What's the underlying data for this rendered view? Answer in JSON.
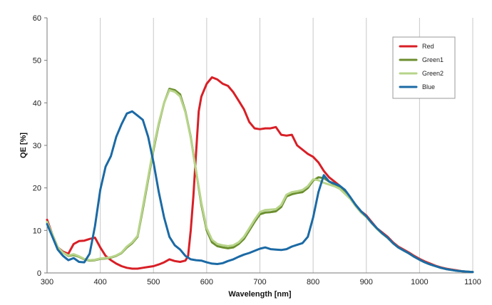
{
  "chart_data": {
    "type": "line",
    "title": "",
    "xlabel": "Wavelength [nm]",
    "ylabel": "QE [%]",
    "xlim": [
      300,
      1100
    ],
    "ylim": [
      0,
      60
    ],
    "x_ticks": [
      "300",
      "400",
      "500",
      "600",
      "700",
      "800",
      "900",
      "1000",
      "1100"
    ],
    "y_ticks": [
      "0",
      "10",
      "20",
      "30",
      "40",
      "50",
      "60"
    ],
    "grid": "vertical",
    "legend_position": "top-right",
    "series": [
      {
        "name": "Red",
        "color": "#d81f26",
        "points": [
          [
            300,
            12.5
          ],
          [
            310,
            9
          ],
          [
            320,
            6
          ],
          [
            330,
            5
          ],
          [
            340,
            4.5
          ],
          [
            350,
            6.8
          ],
          [
            360,
            7.5
          ],
          [
            370,
            7.6
          ],
          [
            380,
            8
          ],
          [
            390,
            8.3
          ],
          [
            400,
            6
          ],
          [
            410,
            4
          ],
          [
            420,
            3
          ],
          [
            430,
            2.2
          ],
          [
            440,
            1.6
          ],
          [
            450,
            1.2
          ],
          [
            460,
            1
          ],
          [
            470,
            1
          ],
          [
            480,
            1.2
          ],
          [
            490,
            1.4
          ],
          [
            500,
            1.6
          ],
          [
            510,
            2
          ],
          [
            520,
            2.5
          ],
          [
            530,
            3.2
          ],
          [
            540,
            2.8
          ],
          [
            550,
            2.6
          ],
          [
            560,
            2.9
          ],
          [
            565,
            4
          ],
          [
            570,
            10
          ],
          [
            575,
            18
          ],
          [
            580,
            28
          ],
          [
            585,
            38
          ],
          [
            590,
            41.5
          ],
          [
            600,
            44.5
          ],
          [
            610,
            46
          ],
          [
            620,
            45.5
          ],
          [
            630,
            44.5
          ],
          [
            640,
            44
          ],
          [
            650,
            42.5
          ],
          [
            660,
            40.5
          ],
          [
            670,
            38.5
          ],
          [
            680,
            35.5
          ],
          [
            690,
            34
          ],
          [
            700,
            33.8
          ],
          [
            710,
            34
          ],
          [
            720,
            34
          ],
          [
            730,
            34.3
          ],
          [
            740,
            32.5
          ],
          [
            750,
            32.3
          ],
          [
            760,
            32.5
          ],
          [
            770,
            30
          ],
          [
            780,
            29
          ],
          [
            790,
            28
          ],
          [
            800,
            27.3
          ],
          [
            810,
            26
          ],
          [
            820,
            24
          ],
          [
            830,
            22.5
          ],
          [
            840,
            21.5
          ],
          [
            850,
            20.5
          ],
          [
            860,
            19
          ],
          [
            870,
            17.5
          ],
          [
            880,
            16
          ],
          [
            890,
            14.5
          ],
          [
            900,
            13.5
          ],
          [
            910,
            12
          ],
          [
            920,
            10.5
          ],
          [
            930,
            9.5
          ],
          [
            940,
            8.5
          ],
          [
            950,
            7.2
          ],
          [
            960,
            6.2
          ],
          [
            970,
            5.5
          ],
          [
            980,
            4.8
          ],
          [
            990,
            4
          ],
          [
            1000,
            3.3
          ],
          [
            1010,
            2.7
          ],
          [
            1020,
            2.2
          ],
          [
            1030,
            1.7
          ],
          [
            1040,
            1.3
          ],
          [
            1050,
            1
          ],
          [
            1060,
            0.8
          ],
          [
            1070,
            0.6
          ],
          [
            1080,
            0.4
          ],
          [
            1090,
            0.3
          ],
          [
            1100,
            0.2
          ]
        ]
      },
      {
        "name": "Green1",
        "color": "#6b8e2e",
        "points": [
          [
            300,
            12
          ],
          [
            310,
            9
          ],
          [
            320,
            6
          ],
          [
            330,
            4.8
          ],
          [
            340,
            4
          ],
          [
            350,
            4.2
          ],
          [
            360,
            3.8
          ],
          [
            370,
            3.2
          ],
          [
            380,
            2.9
          ],
          [
            390,
            3
          ],
          [
            400,
            3.3
          ],
          [
            410,
            3.4
          ],
          [
            420,
            3.6
          ],
          [
            430,
            4
          ],
          [
            440,
            4.7
          ],
          [
            450,
            6
          ],
          [
            460,
            7
          ],
          [
            470,
            8.5
          ],
          [
            480,
            15
          ],
          [
            490,
            22
          ],
          [
            500,
            29
          ],
          [
            510,
            35
          ],
          [
            520,
            40
          ],
          [
            530,
            43.3
          ],
          [
            540,
            43
          ],
          [
            550,
            42
          ],
          [
            560,
            38
          ],
          [
            570,
            32
          ],
          [
            580,
            24
          ],
          [
            590,
            16
          ],
          [
            600,
            10
          ],
          [
            610,
            7.2
          ],
          [
            620,
            6.3
          ],
          [
            630,
            6
          ],
          [
            640,
            5.8
          ],
          [
            650,
            6
          ],
          [
            660,
            6.8
          ],
          [
            670,
            8
          ],
          [
            680,
            10
          ],
          [
            690,
            12
          ],
          [
            700,
            13.8
          ],
          [
            710,
            14.2
          ],
          [
            720,
            14.3
          ],
          [
            730,
            14.5
          ],
          [
            740,
            15.5
          ],
          [
            750,
            18
          ],
          [
            760,
            18.5
          ],
          [
            770,
            18.8
          ],
          [
            780,
            19
          ],
          [
            790,
            20
          ],
          [
            800,
            21.7
          ],
          [
            810,
            22.5
          ],
          [
            820,
            22.3
          ],
          [
            830,
            21.5
          ],
          [
            840,
            20.8
          ],
          [
            850,
            20
          ],
          [
            860,
            18.8
          ],
          [
            870,
            17.5
          ],
          [
            880,
            15.8
          ],
          [
            890,
            14.3
          ],
          [
            900,
            13.2
          ],
          [
            910,
            11.8
          ],
          [
            920,
            10.4
          ],
          [
            930,
            9.3
          ],
          [
            940,
            8.3
          ],
          [
            950,
            7
          ],
          [
            960,
            6
          ],
          [
            970,
            5.3
          ],
          [
            980,
            4.6
          ],
          [
            990,
            3.8
          ],
          [
            1000,
            3.1
          ],
          [
            1010,
            2.5
          ],
          [
            1020,
            2
          ],
          [
            1030,
            1.6
          ],
          [
            1040,
            1.2
          ],
          [
            1050,
            0.9
          ],
          [
            1060,
            0.7
          ],
          [
            1070,
            0.5
          ],
          [
            1080,
            0.4
          ],
          [
            1090,
            0.3
          ],
          [
            1100,
            0.2
          ]
        ]
      },
      {
        "name": "Green2",
        "color": "#b7d48a",
        "points": [
          [
            300,
            12
          ],
          [
            310,
            9
          ],
          [
            320,
            6
          ],
          [
            330,
            4.8
          ],
          [
            340,
            4.1
          ],
          [
            350,
            4.4
          ],
          [
            360,
            3.9
          ],
          [
            370,
            3.3
          ],
          [
            380,
            3
          ],
          [
            390,
            3.1
          ],
          [
            400,
            3.4
          ],
          [
            410,
            3.5
          ],
          [
            420,
            3.7
          ],
          [
            430,
            4.1
          ],
          [
            440,
            4.8
          ],
          [
            450,
            6.2
          ],
          [
            460,
            7.2
          ],
          [
            470,
            8.7
          ],
          [
            480,
            15.5
          ],
          [
            490,
            22.5
          ],
          [
            500,
            29.5
          ],
          [
            510,
            35.3
          ],
          [
            520,
            40
          ],
          [
            530,
            43
          ],
          [
            540,
            42.6
          ],
          [
            550,
            41.5
          ],
          [
            560,
            37.8
          ],
          [
            570,
            31.8
          ],
          [
            580,
            24
          ],
          [
            590,
            16.5
          ],
          [
            600,
            10.5
          ],
          [
            610,
            7.8
          ],
          [
            620,
            6.8
          ],
          [
            630,
            6.5
          ],
          [
            640,
            6.3
          ],
          [
            650,
            6.5
          ],
          [
            660,
            7.2
          ],
          [
            670,
            8.5
          ],
          [
            680,
            10.5
          ],
          [
            690,
            12.5
          ],
          [
            700,
            14.3
          ],
          [
            710,
            14.8
          ],
          [
            720,
            14.9
          ],
          [
            730,
            15
          ],
          [
            740,
            16
          ],
          [
            750,
            18.4
          ],
          [
            760,
            19
          ],
          [
            770,
            19.2
          ],
          [
            780,
            19.5
          ],
          [
            790,
            20.4
          ],
          [
            800,
            22
          ],
          [
            810,
            21.8
          ],
          [
            820,
            21.2
          ],
          [
            830,
            20.8
          ],
          [
            840,
            20.4
          ],
          [
            850,
            19.8
          ],
          [
            860,
            18.6
          ],
          [
            870,
            17.4
          ],
          [
            880,
            15.7
          ],
          [
            890,
            14.2
          ],
          [
            900,
            13.1
          ],
          [
            910,
            11.7
          ],
          [
            920,
            10.3
          ],
          [
            930,
            9.2
          ],
          [
            940,
            8.2
          ],
          [
            950,
            7
          ],
          [
            960,
            6
          ],
          [
            970,
            5.3
          ],
          [
            980,
            4.6
          ],
          [
            990,
            3.8
          ],
          [
            1000,
            3.1
          ],
          [
            1010,
            2.5
          ],
          [
            1020,
            2
          ],
          [
            1030,
            1.6
          ],
          [
            1040,
            1.2
          ],
          [
            1050,
            0.9
          ],
          [
            1060,
            0.7
          ],
          [
            1070,
            0.5
          ],
          [
            1080,
            0.4
          ],
          [
            1090,
            0.3
          ],
          [
            1100,
            0.2
          ]
        ]
      },
      {
        "name": "Blue",
        "color": "#1b6aa5",
        "points": [
          [
            300,
            11.5
          ],
          [
            310,
            8.5
          ],
          [
            320,
            5.5
          ],
          [
            330,
            4
          ],
          [
            340,
            3
          ],
          [
            350,
            3.5
          ],
          [
            360,
            2.6
          ],
          [
            370,
            2.5
          ],
          [
            380,
            4.5
          ],
          [
            390,
            11
          ],
          [
            400,
            19.5
          ],
          [
            410,
            25
          ],
          [
            420,
            27.5
          ],
          [
            430,
            32
          ],
          [
            440,
            35
          ],
          [
            450,
            37.5
          ],
          [
            460,
            38
          ],
          [
            470,
            37
          ],
          [
            480,
            36
          ],
          [
            490,
            32
          ],
          [
            500,
            26
          ],
          [
            510,
            19
          ],
          [
            520,
            13
          ],
          [
            530,
            8.5
          ],
          [
            540,
            6.5
          ],
          [
            550,
            5.5
          ],
          [
            560,
            4
          ],
          [
            570,
            3.2
          ],
          [
            580,
            3
          ],
          [
            590,
            2.9
          ],
          [
            600,
            2.5
          ],
          [
            610,
            2.2
          ],
          [
            620,
            2.1
          ],
          [
            630,
            2.3
          ],
          [
            640,
            2.8
          ],
          [
            650,
            3.2
          ],
          [
            660,
            3.8
          ],
          [
            670,
            4.3
          ],
          [
            680,
            4.7
          ],
          [
            690,
            5.2
          ],
          [
            700,
            5.7
          ],
          [
            710,
            6
          ],
          [
            720,
            5.6
          ],
          [
            730,
            5.5
          ],
          [
            740,
            5.4
          ],
          [
            750,
            5.6
          ],
          [
            760,
            6.2
          ],
          [
            770,
            6.6
          ],
          [
            780,
            7
          ],
          [
            790,
            8.5
          ],
          [
            800,
            13
          ],
          [
            810,
            19
          ],
          [
            820,
            23
          ],
          [
            830,
            21.5
          ],
          [
            840,
            21
          ],
          [
            850,
            20.5
          ],
          [
            860,
            19.5
          ],
          [
            870,
            17.8
          ],
          [
            880,
            16
          ],
          [
            890,
            14.5
          ],
          [
            900,
            13.3
          ],
          [
            910,
            11.8
          ],
          [
            920,
            10.5
          ],
          [
            930,
            9.3
          ],
          [
            940,
            8.3
          ],
          [
            950,
            7
          ],
          [
            960,
            6
          ],
          [
            970,
            5.3
          ],
          [
            980,
            4.6
          ],
          [
            990,
            3.8
          ],
          [
            1000,
            3.1
          ],
          [
            1010,
            2.5
          ],
          [
            1020,
            2
          ],
          [
            1030,
            1.6
          ],
          [
            1040,
            1.2
          ],
          [
            1050,
            0.9
          ],
          [
            1060,
            0.7
          ],
          [
            1070,
            0.5
          ],
          [
            1080,
            0.4
          ],
          [
            1090,
            0.3
          ],
          [
            1100,
            0.2
          ]
        ]
      }
    ]
  }
}
